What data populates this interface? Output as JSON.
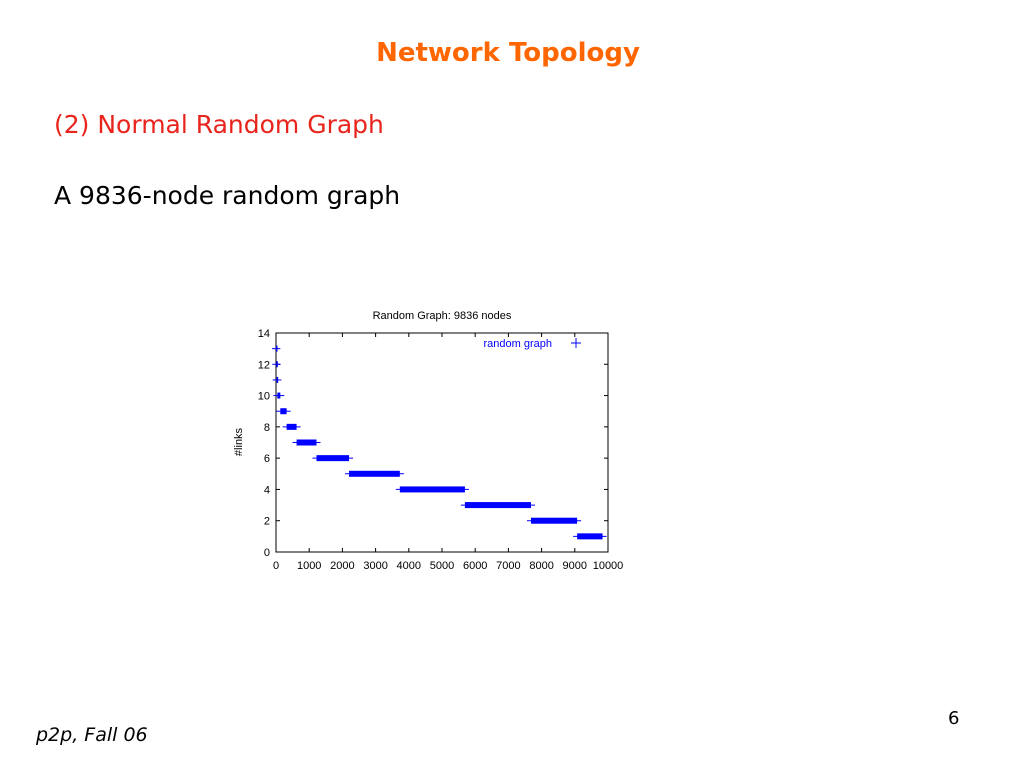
{
  "slide": {
    "title": "Network Topology",
    "subtitle": "(2) Normal Random Graph",
    "body": "A 9836-node random graph",
    "footer": "p2p, Fall 06",
    "page_number": "6"
  },
  "colors": {
    "title": "#ff6600",
    "subtitle": "#e8241c",
    "series": "#0000ff"
  },
  "chart_data": {
    "type": "scatter",
    "title": "Random Graph: 9836 nodes",
    "xlabel": "",
    "ylabel": "#links",
    "xlim": [
      0,
      10000
    ],
    "ylim": [
      0,
      14
    ],
    "x_ticks": [
      0,
      1000,
      2000,
      3000,
      4000,
      5000,
      6000,
      7000,
      8000,
      9000,
      10000
    ],
    "y_ticks": [
      0,
      2,
      4,
      6,
      8,
      10,
      12,
      14
    ],
    "grid": false,
    "legend_position": "top-right",
    "series": [
      {
        "name": "random graph",
        "marker": "+",
        "segments": [
          {
            "y": 13,
            "x_start": 0,
            "x_end": 10
          },
          {
            "y": 12,
            "x_start": 10,
            "x_end": 20
          },
          {
            "y": 11,
            "x_start": 20,
            "x_end": 40
          },
          {
            "y": 10,
            "x_start": 40,
            "x_end": 130
          },
          {
            "y": 9,
            "x_start": 130,
            "x_end": 320
          },
          {
            "y": 8,
            "x_start": 320,
            "x_end": 620
          },
          {
            "y": 7,
            "x_start": 620,
            "x_end": 1220
          },
          {
            "y": 6,
            "x_start": 1220,
            "x_end": 2200
          },
          {
            "y": 5,
            "x_start": 2200,
            "x_end": 3730
          },
          {
            "y": 4,
            "x_start": 3730,
            "x_end": 5690
          },
          {
            "y": 3,
            "x_start": 5690,
            "x_end": 7680
          },
          {
            "y": 2,
            "x_start": 7680,
            "x_end": 9070
          },
          {
            "y": 1,
            "x_start": 9070,
            "x_end": 9836
          }
        ]
      }
    ]
  }
}
